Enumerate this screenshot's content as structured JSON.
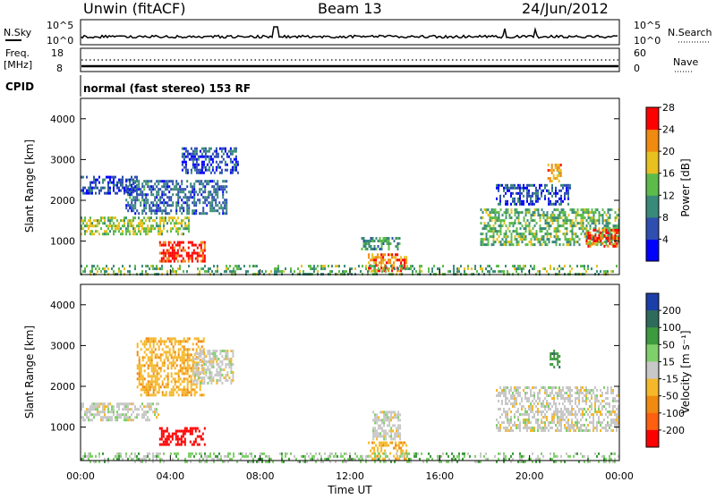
{
  "header": {
    "title": "Unwin (fitACF)",
    "beam": "Beam 13",
    "date": "24/Jun/2012"
  },
  "status": {
    "nsky_label": "N.Sky",
    "nsearch_label": "N.Search",
    "noise_ticks_left": [
      "10^5",
      "10^0"
    ],
    "noise_ticks_right": [
      "10^5",
      "10^0"
    ],
    "freq_label": "Freq.",
    "freq_unit": "[MHz]",
    "freq_ticks": [
      "18",
      "8"
    ],
    "nave_label": "Nave",
    "nave_ticks": [
      "60",
      "0"
    ],
    "cpid_label": "CPID",
    "cpid_text": "normal (fast stereo) 153 RF"
  },
  "chart_data": [
    {
      "type": "heatmap",
      "name": "power",
      "ylabel": "Slant Range [km]",
      "xlabel": "",
      "x_range_hours": [
        0,
        24
      ],
      "ylim": [
        180,
        4500
      ],
      "yticks": [
        "1000",
        "2000",
        "3000",
        "4000"
      ],
      "colorbar": {
        "label": "Power [dB]",
        "ticks": [
          "4",
          "8",
          "12",
          "16",
          "20",
          "24",
          "28"
        ],
        "range": [
          0,
          30
        ],
        "colors": [
          "#0000ff",
          "#2f4fb0",
          "#3a8a7a",
          "#5dbb4a",
          "#e8c020",
          "#f08a10",
          "#ff0000"
        ]
      },
      "regions": [
        {
          "t0": 0.0,
          "t1": 4.8,
          "r0": 1200,
          "r1": 1600,
          "value": 16
        },
        {
          "t0": 0.0,
          "t1": 2.5,
          "r0": 2200,
          "r1": 2600,
          "value": 6
        },
        {
          "t0": 3.5,
          "t1": 5.5,
          "r0": 500,
          "r1": 1000,
          "value": 28
        },
        {
          "t0": 2.0,
          "t1": 6.5,
          "r0": 1700,
          "r1": 2500,
          "value": 8
        },
        {
          "t0": 4.5,
          "t1": 7.0,
          "r0": 2700,
          "r1": 3300,
          "value": 6
        },
        {
          "t0": 12.8,
          "t1": 14.5,
          "r0": 250,
          "r1": 700,
          "value": 24
        },
        {
          "t0": 12.5,
          "t1": 14.2,
          "r0": 800,
          "r1": 1100,
          "value": 12
        },
        {
          "t0": 17.8,
          "t1": 24.0,
          "r0": 900,
          "r1": 1800,
          "value": 14
        },
        {
          "t0": 22.5,
          "t1": 24.0,
          "r0": 900,
          "r1": 1300,
          "value": 26
        },
        {
          "t0": 18.5,
          "t1": 21.8,
          "r0": 1900,
          "r1": 2400,
          "value": 6
        },
        {
          "t0": 20.8,
          "t1": 21.4,
          "r0": 2500,
          "r1": 2900,
          "value": 22
        },
        {
          "t0": 0.0,
          "t1": 24.0,
          "r0": 180,
          "r1": 420,
          "value": 14
        }
      ]
    },
    {
      "type": "heatmap",
      "name": "velocity",
      "ylabel": "Slant Range [km]",
      "xlabel": "Time UT",
      "x_range_hours": [
        0,
        24
      ],
      "xticks": [
        "00:00",
        "04:00",
        "08:00",
        "12:00",
        "16:00",
        "20:00",
        "00:00"
      ],
      "ylim": [
        180,
        4500
      ],
      "yticks": [
        "1000",
        "2000",
        "3000",
        "4000"
      ],
      "colorbar": {
        "label": "Velocity [m s⁻¹]",
        "ticks": [
          "200",
          "100",
          "50",
          "15",
          "-15",
          "-50",
          "-100",
          "-200"
        ],
        "colors": [
          "#1c3ea8",
          "#2f6b5a",
          "#3e9a3e",
          "#7fd06a",
          "#c8c8c8",
          "#f5b82a",
          "#f08a10",
          "#ff6010",
          "#ff0000"
        ]
      },
      "regions": [
        {
          "t0": 0.0,
          "t1": 3.5,
          "r0": 1200,
          "r1": 1600,
          "value": 0
        },
        {
          "t0": 3.5,
          "t1": 5.5,
          "r0": 600,
          "r1": 1000,
          "value": -180
        },
        {
          "t0": 2.5,
          "t1": 5.5,
          "r0": 1800,
          "r1": 3200,
          "value": -40
        },
        {
          "t0": 5.0,
          "t1": 6.8,
          "r0": 2100,
          "r1": 2900,
          "value": 0
        },
        {
          "t0": 12.8,
          "t1": 14.5,
          "r0": 250,
          "r1": 650,
          "value": -40
        },
        {
          "t0": 13.0,
          "t1": 14.2,
          "r0": 700,
          "r1": 1400,
          "value": 0
        },
        {
          "t0": 18.5,
          "t1": 24.0,
          "r0": 900,
          "r1": 2000,
          "value": 0
        },
        {
          "t0": 20.9,
          "t1": 21.3,
          "r0": 2500,
          "r1": 2900,
          "value": 60
        },
        {
          "t0": 0.0,
          "t1": 24.0,
          "r0": 180,
          "r1": 380,
          "value": 20
        }
      ]
    }
  ]
}
